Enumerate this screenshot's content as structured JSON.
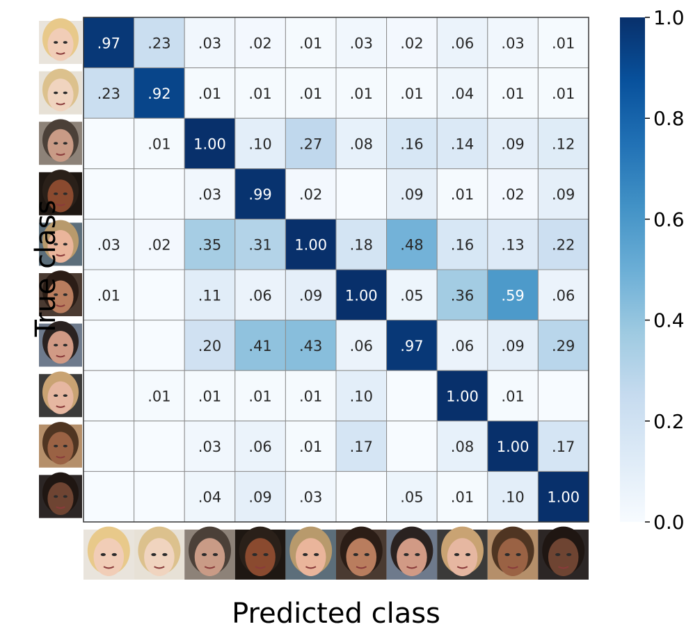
{
  "chart_data": {
    "type": "heatmap",
    "xlabel": "Predicted class",
    "ylabel": "True class",
    "colorbar": {
      "min": 0.0,
      "max": 1.0,
      "ticks": [
        "0.0",
        "0.2",
        "0.4",
        "0.6",
        "0.8",
        "1.0"
      ],
      "colormap": "Blues"
    },
    "rows": 10,
    "cols": 10,
    "labels": [
      [
        ".97",
        ".23",
        ".03",
        ".02",
        ".01",
        ".03",
        ".02",
        ".06",
        ".03",
        ".01"
      ],
      [
        ".23",
        ".92",
        ".01",
        ".01",
        ".01",
        ".01",
        ".01",
        ".04",
        ".01",
        ".01"
      ],
      [
        "",
        ".01",
        "1.00",
        ".10",
        ".27",
        ".08",
        ".16",
        ".14",
        ".09",
        ".12"
      ],
      [
        "",
        "",
        ".03",
        ".99",
        ".02",
        "",
        ".09",
        ".01",
        ".02",
        ".09"
      ],
      [
        ".03",
        ".02",
        ".35",
        ".31",
        "1.00",
        ".18",
        ".48",
        ".16",
        ".13",
        ".22"
      ],
      [
        ".01",
        "",
        ".11",
        ".06",
        ".09",
        "1.00",
        ".05",
        ".36",
        ".59",
        ".06"
      ],
      [
        "",
        "",
        ".20",
        ".41",
        ".43",
        ".06",
        ".97",
        ".06",
        ".09",
        ".29"
      ],
      [
        "",
        ".01",
        ".01",
        ".01",
        ".01",
        ".10",
        "",
        "1.00",
        ".01",
        ""
      ],
      [
        "",
        "",
        ".03",
        ".06",
        ".01",
        ".17",
        "",
        ".08",
        "1.00",
        ".17"
      ],
      [
        "",
        "",
        ".04",
        ".09",
        ".03",
        "",
        ".05",
        ".01",
        ".10",
        "1.00"
      ]
    ],
    "values": [
      [
        0.97,
        0.23,
        0.03,
        0.02,
        0.01,
        0.03,
        0.02,
        0.06,
        0.03,
        0.01
      ],
      [
        0.23,
        0.92,
        0.01,
        0.01,
        0.01,
        0.01,
        0.01,
        0.04,
        0.01,
        0.01
      ],
      [
        0.0,
        0.01,
        1.0,
        0.1,
        0.27,
        0.08,
        0.16,
        0.14,
        0.09,
        0.12
      ],
      [
        0.0,
        0.0,
        0.03,
        0.99,
        0.02,
        0.0,
        0.09,
        0.01,
        0.02,
        0.09
      ],
      [
        0.03,
        0.02,
        0.35,
        0.31,
        1.0,
        0.18,
        0.48,
        0.16,
        0.13,
        0.22
      ],
      [
        0.01,
        0.0,
        0.11,
        0.06,
        0.09,
        1.0,
        0.05,
        0.36,
        0.59,
        0.06
      ],
      [
        0.0,
        0.0,
        0.2,
        0.41,
        0.43,
        0.06,
        0.97,
        0.06,
        0.09,
        0.29
      ],
      [
        0.0,
        0.01,
        0.01,
        0.01,
        0.01,
        0.1,
        0.0,
        1.0,
        0.01,
        0.0
      ],
      [
        0.0,
        0.0,
        0.03,
        0.06,
        0.01,
        0.17,
        0.0,
        0.08,
        1.0,
        0.17
      ],
      [
        0.0,
        0.0,
        0.04,
        0.09,
        0.03,
        0.0,
        0.05,
        0.01,
        0.1,
        1.0
      ]
    ],
    "class_thumbnails": [
      {
        "hair": "#e8c98a",
        "skin": "#f1cdb7",
        "bg": "#e9e4dc"
      },
      {
        "hair": "#dcc18d",
        "skin": "#f0d4bf",
        "bg": "#e7e1d6"
      },
      {
        "hair": "#4b4038",
        "skin": "#c99b86",
        "bg": "#8d8278"
      },
      {
        "hair": "#2a2019",
        "skin": "#8a4a2f",
        "bg": "#1e1712"
      },
      {
        "hair": "#b89a6c",
        "skin": "#eab59b",
        "bg": "#5c6e7a"
      },
      {
        "hair": "#2b1d16",
        "skin": "#b97d5e",
        "bg": "#4a3a31"
      },
      {
        "hair": "#2a2220",
        "skin": "#d19a85",
        "bg": "#6e7a8c"
      },
      {
        "hair": "#c9a373",
        "skin": "#e6b7a1",
        "bg": "#3b3a39"
      },
      {
        "hair": "#4f3522",
        "skin": "#9a6244",
        "bg": "#b58f6a"
      },
      {
        "hair": "#1f1612",
        "skin": "#6e4432",
        "bg": "#2c2625"
      }
    ],
    "grid": true
  }
}
